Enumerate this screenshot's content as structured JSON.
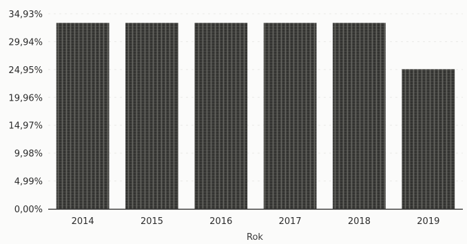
{
  "chart_data": {
    "type": "bar",
    "categories": [
      "2014",
      "2015",
      "2016",
      "2017",
      "2018",
      "2019"
    ],
    "values": [
      33.3,
      33.3,
      33.3,
      33.3,
      33.3,
      25.0
    ],
    "y_ticks": [
      "0,00%",
      "4,99%",
      "9,98%",
      "14,97%",
      "19,96%",
      "24,95%",
      "29,94%",
      "34,93%"
    ],
    "y_tick_values": [
      0,
      4.99,
      9.98,
      14.97,
      19.96,
      24.95,
      29.94,
      34.93
    ],
    "ylim": [
      0,
      34.93
    ],
    "xlabel": "Rok",
    "ylabel": "",
    "title": "",
    "grid": true,
    "legend": "none",
    "colors": {
      "bar": "#3d3d3a",
      "bar_texture": "#6b6b66",
      "axis": "#222222",
      "grid": "#e9e9e6"
    }
  }
}
